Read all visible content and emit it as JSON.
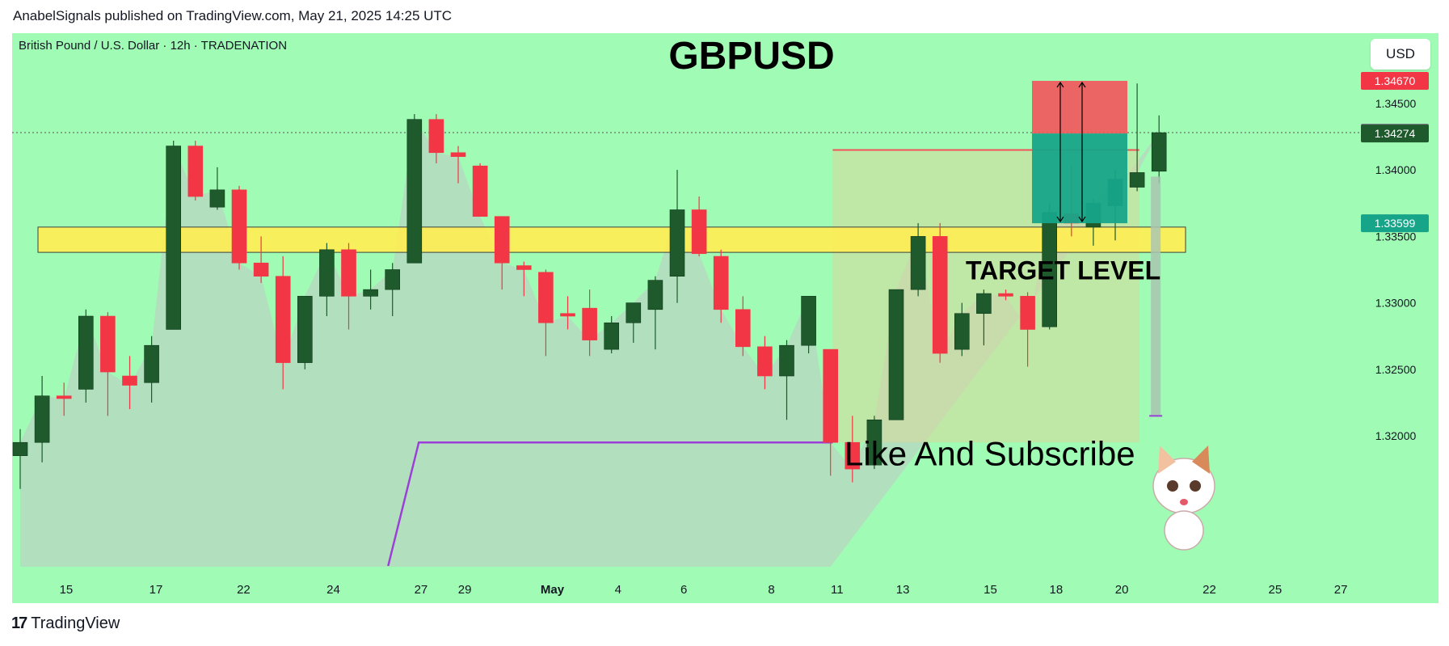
{
  "header": {
    "text": "AnabelSignals published on TradingView.com, May 21, 2025 14:25 UTC"
  },
  "symbol_line": "British Pound  / U.S. Dollar · 12h · TRADENATION",
  "currency_button": "USD",
  "footer": {
    "logo_mark": "17",
    "logo_text": "TradingView"
  },
  "colors": {
    "background": "#a0fbb4",
    "up": "#1e5a2c",
    "down": "#f23645",
    "zone": "#ffee55",
    "stop": "#f2545b",
    "target": "#17a589"
  },
  "chart_data": {
    "type": "candlestick",
    "title": "GBPUSD",
    "annotations": [
      "TARGET LEVEL",
      "Like And Subscribe"
    ],
    "y_ticks": [
      "1.34500",
      "1.34000",
      "1.33500",
      "1.33000",
      "1.32500",
      "1.32000"
    ],
    "y_tick_values": [
      1.345,
      1.34,
      1.335,
      1.33,
      1.325,
      1.32
    ],
    "ylim": [
      1.3145,
      1.348
    ],
    "x_ticks": [
      {
        "label": "15",
        "i": 2.1
      },
      {
        "label": "17",
        "i": 6.2
      },
      {
        "label": "22",
        "i": 10.2
      },
      {
        "label": "24",
        "i": 14.3
      },
      {
        "label": "27",
        "i": 18.3
      },
      {
        "label": "29",
        "i": 20.3
      },
      {
        "label": "May",
        "i": 24.3
      },
      {
        "label": "4",
        "i": 27.3
      },
      {
        "label": "6",
        "i": 30.3
      },
      {
        "label": "8",
        "i": 34.3
      },
      {
        "label": "11",
        "i": 37.3
      },
      {
        "label": "13",
        "i": 40.3
      },
      {
        "label": "15",
        "i": 44.3
      },
      {
        "label": "18",
        "i": 47.3
      },
      {
        "label": "20",
        "i": 50.3
      },
      {
        "label": "22",
        "i": 54.3
      },
      {
        "label": "25",
        "i": 57.3
      },
      {
        "label": "27",
        "i": 60.3
      }
    ],
    "price_labels": [
      {
        "text": "1.34670",
        "value": 1.3467,
        "color": "#f23645"
      },
      {
        "text": "1.34281",
        "value": 1.34281,
        "color": "#7a7f8a"
      },
      {
        "text": "1.34274",
        "value": 1.34274,
        "color": "#1e5a2c"
      },
      {
        "text": "1.33599",
        "value": 1.33599,
        "color": "#17a589"
      }
    ],
    "candles": [
      {
        "o": 1.3185,
        "h": 1.3205,
        "l": 1.316,
        "c": 1.3195
      },
      {
        "o": 1.3195,
        "h": 1.3245,
        "l": 1.318,
        "c": 1.323
      },
      {
        "o": 1.323,
        "h": 1.324,
        "l": 1.3215,
        "c": 1.3228
      },
      {
        "o": 1.3235,
        "h": 1.3295,
        "l": 1.3225,
        "c": 1.329
      },
      {
        "o": 1.329,
        "h": 1.3293,
        "l": 1.3215,
        "c": 1.3248
      },
      {
        "o": 1.3245,
        "h": 1.326,
        "l": 1.322,
        "c": 1.3238
      },
      {
        "o": 1.324,
        "h": 1.3275,
        "l": 1.3225,
        "c": 1.3268
      },
      {
        "o": 1.328,
        "h": 1.3422,
        "l": 1.328,
        "c": 1.3418
      },
      {
        "o": 1.3418,
        "h": 1.3422,
        "l": 1.3377,
        "c": 1.338
      },
      {
        "o": 1.3372,
        "h": 1.3402,
        "l": 1.337,
        "c": 1.3385
      },
      {
        "o": 1.3385,
        "h": 1.3388,
        "l": 1.3325,
        "c": 1.333
      },
      {
        "o": 1.333,
        "h": 1.335,
        "l": 1.3315,
        "c": 1.332
      },
      {
        "o": 1.332,
        "h": 1.3335,
        "l": 1.3235,
        "c": 1.3255
      },
      {
        "o": 1.3255,
        "h": 1.3305,
        "l": 1.325,
        "c": 1.3305
      },
      {
        "o": 1.3305,
        "h": 1.3345,
        "l": 1.329,
        "c": 1.334
      },
      {
        "o": 1.334,
        "h": 1.3345,
        "l": 1.328,
        "c": 1.3305
      },
      {
        "o": 1.3305,
        "h": 1.3325,
        "l": 1.3295,
        "c": 1.331
      },
      {
        "o": 1.331,
        "h": 1.333,
        "l": 1.329,
        "c": 1.3325
      },
      {
        "o": 1.333,
        "h": 1.3442,
        "l": 1.333,
        "c": 1.3438
      },
      {
        "o": 1.3438,
        "h": 1.3442,
        "l": 1.3405,
        "c": 1.3413
      },
      {
        "o": 1.3413,
        "h": 1.3418,
        "l": 1.339,
        "c": 1.341
      },
      {
        "o": 1.3403,
        "h": 1.3405,
        "l": 1.3365,
        "c": 1.3365
      },
      {
        "o": 1.3365,
        "h": 1.3365,
        "l": 1.331,
        "c": 1.333
      },
      {
        "o": 1.3328,
        "h": 1.3331,
        "l": 1.3305,
        "c": 1.3325
      },
      {
        "o": 1.3323,
        "h": 1.3325,
        "l": 1.326,
        "c": 1.3285
      },
      {
        "o": 1.3292,
        "h": 1.3305,
        "l": 1.328,
        "c": 1.329
      },
      {
        "o": 1.3296,
        "h": 1.331,
        "l": 1.326,
        "c": 1.3272
      },
      {
        "o": 1.3265,
        "h": 1.329,
        "l": 1.3262,
        "c": 1.3285
      },
      {
        "o": 1.3285,
        "h": 1.33,
        "l": 1.327,
        "c": 1.33
      },
      {
        "o": 1.3295,
        "h": 1.332,
        "l": 1.3265,
        "c": 1.3317
      },
      {
        "o": 1.332,
        "h": 1.34,
        "l": 1.33,
        "c": 1.337
      },
      {
        "o": 1.337,
        "h": 1.338,
        "l": 1.3335,
        "c": 1.3337
      },
      {
        "o": 1.3335,
        "h": 1.334,
        "l": 1.3285,
        "c": 1.3295
      },
      {
        "o": 1.3295,
        "h": 1.3305,
        "l": 1.326,
        "c": 1.3267
      },
      {
        "o": 1.3267,
        "h": 1.3275,
        "l": 1.3235,
        "c": 1.3245
      },
      {
        "o": 1.3245,
        "h": 1.3272,
        "l": 1.3212,
        "c": 1.3268
      },
      {
        "o": 1.3268,
        "h": 1.3305,
        "l": 1.3262,
        "c": 1.3305
      },
      {
        "o": 1.3265,
        "h": 1.3265,
        "l": 1.317,
        "c": 1.3195
      },
      {
        "o": 1.3195,
        "h": 1.3215,
        "l": 1.3165,
        "c": 1.3175
      },
      {
        "o": 1.3178,
        "h": 1.3215,
        "l": 1.3175,
        "c": 1.3212
      },
      {
        "o": 1.3212,
        "h": 1.331,
        "l": 1.3212,
        "c": 1.331
      },
      {
        "o": 1.331,
        "h": 1.336,
        "l": 1.3305,
        "c": 1.335
      },
      {
        "o": 1.335,
        "h": 1.336,
        "l": 1.3255,
        "c": 1.3262
      },
      {
        "o": 1.3265,
        "h": 1.33,
        "l": 1.326,
        "c": 1.3292
      },
      {
        "o": 1.3292,
        "h": 1.331,
        "l": 1.3268,
        "c": 1.3307
      },
      {
        "o": 1.3307,
        "h": 1.331,
        "l": 1.3302,
        "c": 1.3305
      },
      {
        "o": 1.3305,
        "h": 1.3308,
        "l": 1.3252,
        "c": 1.328
      },
      {
        "o": 1.3282,
        "h": 1.3375,
        "l": 1.328,
        "c": 1.3368
      },
      {
        "o": 1.3367,
        "h": 1.3403,
        "l": 1.335,
        "c": 1.336
      },
      {
        "o": 1.3357,
        "h": 1.3378,
        "l": 1.3343,
        "c": 1.3375
      },
      {
        "o": 1.3373,
        "h": 1.34,
        "l": 1.3347,
        "c": 1.3393
      },
      {
        "o": 1.3387,
        "h": 1.3465,
        "l": 1.3384,
        "c": 1.3398
      },
      {
        "o": 1.3399,
        "h": 1.3441,
        "l": 1.339,
        "c": 1.3428
      }
    ]
  }
}
